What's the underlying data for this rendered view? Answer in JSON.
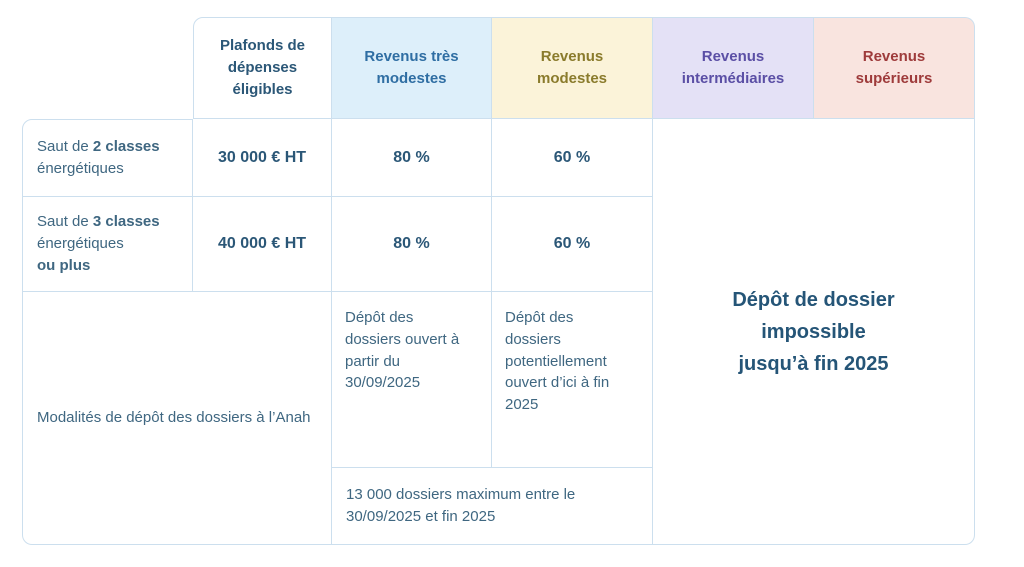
{
  "colors": {
    "border": "#ccdfee",
    "header_plafonds_bg": "#ffffff",
    "header_plafonds_text": "#2b5777",
    "header_tres_modestes_bg": "#ddeffa",
    "header_tres_modestes_text": "#2f6ea3",
    "header_modestes_bg": "#fbf3d9",
    "header_modestes_text": "#8a7b2c",
    "header_intermediaires_bg": "#e4e1f6",
    "header_intermediaires_text": "#5b4fa5",
    "header_superieurs_bg": "#f9e4df",
    "header_superieurs_text": "#9e3b3b",
    "value_text": "#2b5777",
    "body_text": "#3f6781",
    "impossible_text": "#255577"
  },
  "header": {
    "plafonds": "Plafonds de dépenses éligibles",
    "tres_modestes": "Revenus très modestes",
    "modestes": "Revenus modestes",
    "intermediaires": "Revenus intermédiaires",
    "superieurs": "Revenus supérieurs"
  },
  "rows": {
    "saut2": {
      "pre": "Saut de",
      "bold": "2 classes",
      "line2": "énergétiques",
      "plafond": "30 000 € HT",
      "pct_tres_modestes": "80 %",
      "pct_modestes": "60 %"
    },
    "saut3": {
      "pre": "Saut de",
      "bold": "3 classes",
      "line2": "énergétiques",
      "bold2": "ou plus",
      "plafond": "40 000 € HT",
      "pct_tres_modestes": "80 %",
      "pct_modestes": "60 %"
    },
    "modalites": {
      "label": "Modalités de dépôt des dossiers à l’Anah",
      "depot_tres_modestes": "Dépôt des dossiers ouvert à partir du 30/09/2025",
      "depot_modestes": "Dépôt des dossiers potentiellement ouvert d’ici à fin 2025",
      "quota": "13 000 dossiers maximum entre le 30/09/2025 et fin 2025"
    }
  },
  "impossible": {
    "line1": "Dépôt de dossier",
    "line2": "impossible",
    "line3": "jusqu’à fin 2025"
  },
  "chart_data": {
    "type": "table",
    "title": "Plafonds et taux MaPrimeRénov' / Anah selon les revenus",
    "columns": [
      "",
      "Plafonds de dépenses éligibles",
      "Revenus très modestes",
      "Revenus modestes",
      "Revenus intermédiaires",
      "Revenus supérieurs"
    ],
    "rows": [
      [
        "Saut de 2 classes énergétiques",
        "30 000 € HT",
        "80 %",
        "60 %",
        "Dépôt de dossier impossible jusqu’à fin 2025",
        "Dépôt de dossier impossible jusqu’à fin 2025"
      ],
      [
        "Saut de 3 classes énergétiques ou plus",
        "40 000 € HT",
        "80 %",
        "60 %",
        "Dépôt de dossier impossible jusqu’à fin 2025",
        "Dépôt de dossier impossible jusqu’à fin 2025"
      ],
      [
        "Modalités de dépôt des dossiers à l’Anah",
        "",
        "Dépôt des dossiers ouvert à partir du 30/09/2025",
        "Dépôt des dossiers potentiellement ouvert d’ici à fin 2025",
        "Dépôt de dossier impossible jusqu’à fin 2025",
        "Dépôt de dossier impossible jusqu’à fin 2025"
      ],
      [
        "Modalités de dépôt des dossiers à l’Anah",
        "",
        "13 000 dossiers maximum entre le 30/09/2025 et fin 2025",
        "13 000 dossiers maximum entre le 30/09/2025 et fin 2025",
        "Dépôt de dossier impossible jusqu’à fin 2025",
        "Dépôt de dossier impossible jusqu’à fin 2025"
      ]
    ],
    "merges": [
      "top-left corner cell is empty (no border, no background)",
      "col Modalités label spans columns 1-2 and bottom two body rows",
      "quota cell spans columns 'Revenus très modestes' + 'Revenus modestes' in last row",
      "'Dépôt de dossier impossible jusqu’à fin 2025' spans columns 'Revenus intermédiaires' + 'Revenus supérieurs' over all body rows"
    ]
  }
}
